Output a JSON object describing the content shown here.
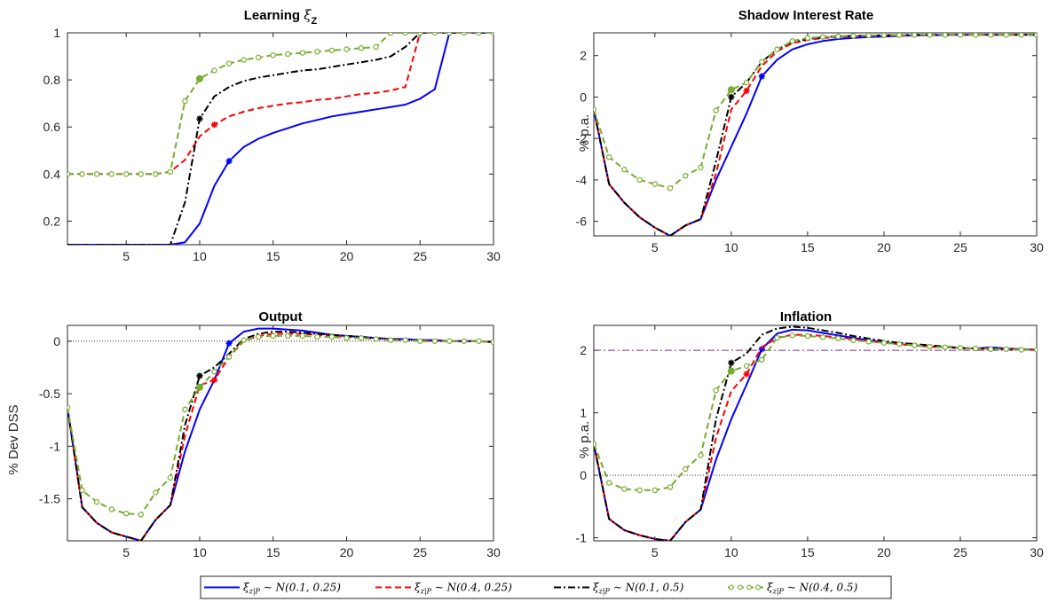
{
  "chart_data": [
    {
      "type": "line",
      "title": "Learning ξ_Z",
      "title_main": "Learning ",
      "title_sym": "ξ",
      "title_sub": "Z",
      "xlabel": "",
      "ylabel": "",
      "xlim": [
        1,
        30
      ],
      "ylim": [
        0.1,
        1
      ],
      "xticks": [
        5,
        10,
        15,
        20,
        25,
        30
      ],
      "yticks": [
        0.2,
        0.4,
        0.6,
        0.8,
        1
      ],
      "ytick_labels": [
        "0.2",
        "0.4",
        "0.6",
        "0.8",
        "1"
      ],
      "hlines": [],
      "series": [
        {
          "key": "s1",
          "marker_x": 12,
          "values": [
            0.1,
            0.1,
            0.1,
            0.1,
            0.1,
            0.1,
            0.1,
            0.1,
            0.11,
            0.19,
            0.35,
            0.455,
            0.515,
            0.55,
            0.575,
            0.595,
            0.615,
            0.63,
            0.645,
            0.655,
            0.665,
            0.675,
            0.685,
            0.695,
            0.72,
            0.76,
            1,
            1,
            1,
            1
          ]
        },
        {
          "key": "s2",
          "marker_x": 11,
          "values": [
            0.4,
            0.4,
            0.4,
            0.4,
            0.4,
            0.4,
            0.4,
            0.41,
            0.46,
            0.56,
            0.61,
            0.645,
            0.665,
            0.68,
            0.69,
            0.7,
            0.705,
            0.715,
            0.72,
            0.73,
            0.74,
            0.745,
            0.755,
            0.77,
            1,
            1,
            1,
            1,
            1,
            1
          ]
        },
        {
          "key": "s3",
          "marker_x": 10,
          "values": [
            0.1,
            0.1,
            0.1,
            0.1,
            0.1,
            0.1,
            0.1,
            0.1,
            0.28,
            0.635,
            0.73,
            0.77,
            0.795,
            0.81,
            0.82,
            0.83,
            0.84,
            0.845,
            0.855,
            0.865,
            0.875,
            0.885,
            0.9,
            0.94,
            1,
            1,
            1,
            1,
            1,
            1
          ]
        },
        {
          "key": "s4",
          "marker_x": 10,
          "values": [
            0.4,
            0.4,
            0.4,
            0.4,
            0.4,
            0.4,
            0.4,
            0.41,
            0.71,
            0.805,
            0.84,
            0.87,
            0.885,
            0.895,
            0.905,
            0.91,
            0.915,
            0.92,
            0.925,
            0.93,
            0.935,
            0.94,
            1,
            1,
            1,
            1,
            1,
            1,
            1,
            1
          ]
        }
      ]
    },
    {
      "type": "line",
      "title": "Shadow Interest Rate",
      "xlabel": "",
      "ylabel": "% p.a.",
      "xlim": [
        1,
        30
      ],
      "ylim": [
        -6.7,
        3.1
      ],
      "xticks": [
        5,
        10,
        15,
        20,
        25,
        30
      ],
      "yticks": [
        -6,
        -4,
        -2,
        0,
        2
      ],
      "ytick_labels": [
        "-6",
        "-4",
        "-2",
        "0",
        "2"
      ],
      "hlines": [],
      "series": [
        {
          "key": "s1",
          "marker_x": 12,
          "values": [
            -0.6,
            -4.2,
            -5.1,
            -5.8,
            -6.3,
            -6.7,
            -6.2,
            -5.9,
            -4,
            -2.4,
            -0.8,
            1,
            1.8,
            2.3,
            2.55,
            2.7,
            2.8,
            2.85,
            2.9,
            2.92,
            2.95,
            2.97,
            2.98,
            2.99,
            3,
            3,
            3,
            3,
            3,
            3
          ]
        },
        {
          "key": "s2",
          "marker_x": 11,
          "values": [
            -0.6,
            -4.2,
            -5.1,
            -5.8,
            -6.3,
            -6.7,
            -6.2,
            -5.9,
            -3.7,
            -0.6,
            0.3,
            1.5,
            2.2,
            2.6,
            2.75,
            2.85,
            2.9,
            2.93,
            2.95,
            2.97,
            2.98,
            2.99,
            3,
            3,
            3,
            3,
            3,
            3,
            3,
            3
          ]
        },
        {
          "key": "s3",
          "marker_x": 10,
          "values": [
            -0.6,
            -4.2,
            -5.1,
            -5.8,
            -6.3,
            -6.7,
            -6.2,
            -5.9,
            -3.1,
            0,
            0.7,
            1.7,
            2.3,
            2.65,
            2.8,
            2.88,
            2.93,
            2.95,
            2.97,
            2.98,
            2.99,
            3,
            3,
            3,
            3,
            3,
            3,
            3,
            3,
            3
          ]
        },
        {
          "key": "s4",
          "marker_x": 10,
          "values": [
            -0.6,
            -2.9,
            -3.5,
            -4,
            -4.2,
            -4.4,
            -3.8,
            -3.4,
            -0.65,
            0.35,
            0.7,
            1.7,
            2.3,
            2.7,
            2.85,
            2.9,
            2.93,
            2.95,
            2.97,
            2.98,
            2.99,
            3,
            3,
            3,
            3,
            3,
            3,
            3,
            3,
            3
          ]
        }
      ]
    },
    {
      "type": "line",
      "title": "Output",
      "xlabel": "",
      "ylabel": "% Dev DSS",
      "xlim": [
        1,
        30
      ],
      "ylim": [
        -1.9,
        0.15
      ],
      "xticks": [
        5,
        10,
        15,
        20,
        25,
        30
      ],
      "yticks": [
        -1.5,
        -1,
        -0.5,
        0
      ],
      "ytick_labels": [
        "-1.5",
        "-1",
        "-0.5",
        "0"
      ],
      "hlines": [
        {
          "y": 0,
          "style": "dotted",
          "color": "#333333"
        }
      ],
      "series": [
        {
          "key": "s1",
          "marker_x": 12,
          "values": [
            -0.63,
            -1.58,
            -1.73,
            -1.82,
            -1.86,
            -1.9,
            -1.7,
            -1.56,
            -1.05,
            -0.65,
            -0.37,
            -0.02,
            0.09,
            0.12,
            0.12,
            0.11,
            0.1,
            0.08,
            0.06,
            0.05,
            0.04,
            0.03,
            0.02,
            0.02,
            0.01,
            0.01,
            0,
            0,
            0,
            -0.01
          ]
        },
        {
          "key": "s2",
          "marker_x": 11,
          "values": [
            -0.63,
            -1.58,
            -1.73,
            -1.82,
            -1.86,
            -1.9,
            -1.7,
            -1.56,
            -0.9,
            -0.42,
            -0.37,
            -0.15,
            0,
            0.05,
            0.07,
            0.07,
            0.07,
            0.06,
            0.05,
            0.04,
            0.03,
            0.02,
            0.01,
            0.01,
            0,
            0,
            0,
            0,
            0,
            -0.01
          ]
        },
        {
          "key": "s3",
          "marker_x": 10,
          "values": [
            -0.63,
            -1.58,
            -1.73,
            -1.82,
            -1.86,
            -1.9,
            -1.7,
            -1.56,
            -0.8,
            -0.33,
            -0.25,
            -0.12,
            0.02,
            0.07,
            0.09,
            0.09,
            0.08,
            0.07,
            0.06,
            0.05,
            0.04,
            0.03,
            0.02,
            0.01,
            0.01,
            0,
            0,
            0,
            0,
            -0.01
          ]
        },
        {
          "key": "s4",
          "marker_x": 10,
          "values": [
            -0.63,
            -1.42,
            -1.53,
            -1.6,
            -1.64,
            -1.65,
            -1.44,
            -1.3,
            -0.65,
            -0.44,
            -0.29,
            -0.15,
            0.01,
            0.04,
            0.05,
            0.05,
            0.05,
            0.04,
            0.04,
            0.03,
            0.03,
            0.02,
            0.01,
            0.01,
            0,
            0,
            0,
            0,
            0,
            -0.01
          ]
        }
      ]
    },
    {
      "type": "line",
      "title": "Inflation",
      "xlabel": "",
      "ylabel": "% p.a.",
      "xlim": [
        1,
        30
      ],
      "ylim": [
        -1.05,
        2.4
      ],
      "xticks": [
        5,
        10,
        15,
        20,
        25,
        30
      ],
      "yticks": [
        -1,
        0,
        1,
        2
      ],
      "ytick_labels": [
        "-1",
        "0",
        "1",
        "2"
      ],
      "hlines": [
        {
          "y": 0,
          "style": "dotted",
          "color": "#333333"
        },
        {
          "y": 2,
          "style": "dashdot",
          "color": "#7e2f8e"
        }
      ],
      "series": [
        {
          "key": "s1",
          "marker_x": 12,
          "values": [
            0.5,
            -0.7,
            -0.88,
            -0.96,
            -1.02,
            -1.05,
            -0.75,
            -0.55,
            0.25,
            0.9,
            1.45,
            2.02,
            2.27,
            2.33,
            2.32,
            2.28,
            2.24,
            2.2,
            2.16,
            2.13,
            2.1,
            2.08,
            2.06,
            2.05,
            2.04,
            2.03,
            2.05,
            2.03,
            2.02,
            2.01
          ]
        },
        {
          "key": "s2",
          "marker_x": 11,
          "values": [
            0.5,
            -0.7,
            -0.88,
            -0.96,
            -1.02,
            -1.05,
            -0.75,
            -0.55,
            0.6,
            1.35,
            1.62,
            2.05,
            2.2,
            2.25,
            2.25,
            2.23,
            2.21,
            2.18,
            2.15,
            2.12,
            2.1,
            2.08,
            2.06,
            2.05,
            2.04,
            2.03,
            2.03,
            2.02,
            2.02,
            2.01
          ]
        },
        {
          "key": "s3",
          "marker_x": 10,
          "values": [
            0.5,
            -0.7,
            -0.88,
            -0.96,
            -1.02,
            -1.05,
            -0.75,
            -0.55,
            0.9,
            1.8,
            1.95,
            2.25,
            2.35,
            2.38,
            2.36,
            2.32,
            2.28,
            2.23,
            2.19,
            2.15,
            2.12,
            2.1,
            2.08,
            2.06,
            2.04,
            2.03,
            2.03,
            2.02,
            2.01,
            2.01
          ]
        },
        {
          "key": "s4",
          "marker_x": 10,
          "values": [
            0.5,
            -0.12,
            -0.22,
            -0.24,
            -0.24,
            -0.19,
            0.1,
            0.32,
            1.36,
            1.67,
            1.75,
            1.85,
            2.2,
            2.24,
            2.23,
            2.21,
            2.19,
            2.16,
            2.14,
            2.12,
            2.1,
            2.08,
            2.06,
            2.05,
            2.04,
            2.03,
            2.02,
            2.02,
            2.01,
            2.01
          ]
        }
      ]
    }
  ],
  "legend": {
    "placement": "bottom-center",
    "entries": [
      {
        "key": "s1",
        "label": "ξz|P ∼ N(0.1, 0.25)",
        "sym": "ξ",
        "sub": "z|P",
        "rest": " ∼ N(0.1, 0.25)"
      },
      {
        "key": "s2",
        "label": "ξz|P ∼ N(0.4, 0.25)",
        "sym": "ξ",
        "sub": "z|P",
        "rest": " ∼ N(0.4, 0.25)"
      },
      {
        "key": "s3",
        "label": "ξz|P ∼ N(0.1, 0.5)",
        "sym": "ξ",
        "sub": "z|P",
        "rest": " ∼ N(0.1, 0.5)"
      },
      {
        "key": "s4",
        "label": "ξz|P ∼ N(0.4, 0.5)",
        "sym": "ξ",
        "sub": "z|P",
        "rest": " ∼ N(0.4, 0.5)"
      }
    ]
  },
  "series_styles": {
    "s1": {
      "color": "#0000ff",
      "dash": "solid",
      "marker": "star"
    },
    "s2": {
      "color": "#ff0000",
      "dash": "dashed",
      "marker": "star"
    },
    "s3": {
      "color": "#000000",
      "dash": "dashdot",
      "marker": "star"
    },
    "s4": {
      "color": "#77ac30",
      "dash": "dashed",
      "marker": "circle"
    }
  }
}
